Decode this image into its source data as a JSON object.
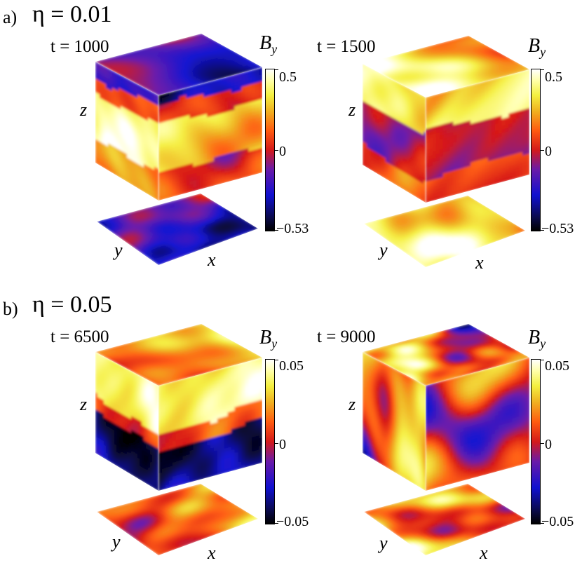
{
  "field_label": "B",
  "field_subscript": "y",
  "axis_labels": {
    "x": "x",
    "y": "y",
    "z": "z"
  },
  "colormap_stops": [
    "#000000",
    "#1010d0",
    "#6a1aa8",
    "#d41a1a",
    "#ff5a10",
    "#f0b020",
    "#f4f040",
    "#ffffff"
  ],
  "rows": [
    {
      "label": "a)",
      "eta": "η = 0.01",
      "colorbar": {
        "max": "0.5",
        "mid": "0",
        "min": "−0.53"
      },
      "panels": [
        {
          "time": "t = 1000"
        },
        {
          "time": "t = 1500"
        }
      ]
    },
    {
      "label": "b)",
      "eta": "η = 0.05",
      "colorbar": {
        "max": "0.05",
        "mid": "0",
        "min": "−0.05"
      },
      "panels": [
        {
          "time": "t = 6500"
        },
        {
          "time": "t = 9000"
        }
      ]
    }
  ]
}
